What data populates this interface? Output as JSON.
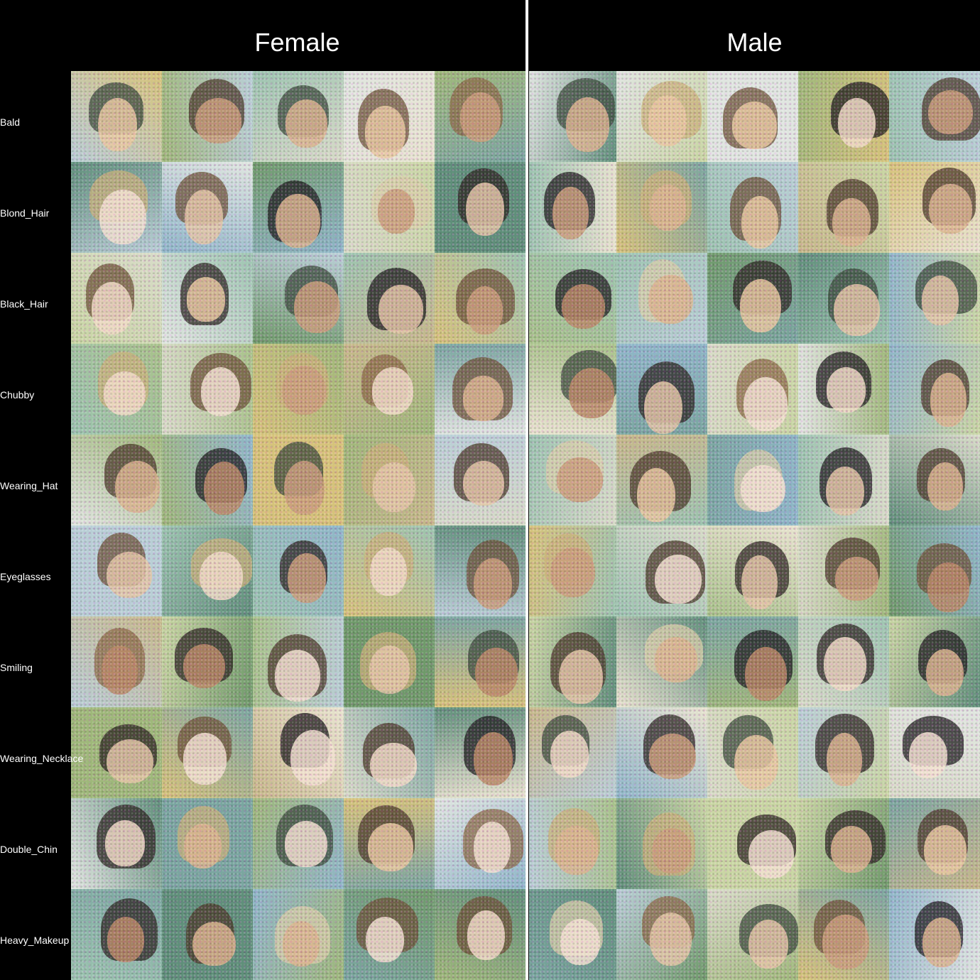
{
  "columns": {
    "female": "Female",
    "male": "Male"
  },
  "rows": [
    "Bald",
    "Blond_Hair",
    "Black_Hair",
    "Chubby",
    "Wearing_Hat",
    "Eyeglasses",
    "Smiling",
    "Wearing_Necklace",
    "Double_Chin",
    "Heavy_Makeup"
  ],
  "samples_per_cell": 5,
  "palette": {
    "background": "#000000",
    "text": "#ffffff",
    "divider": "#ffffff"
  }
}
